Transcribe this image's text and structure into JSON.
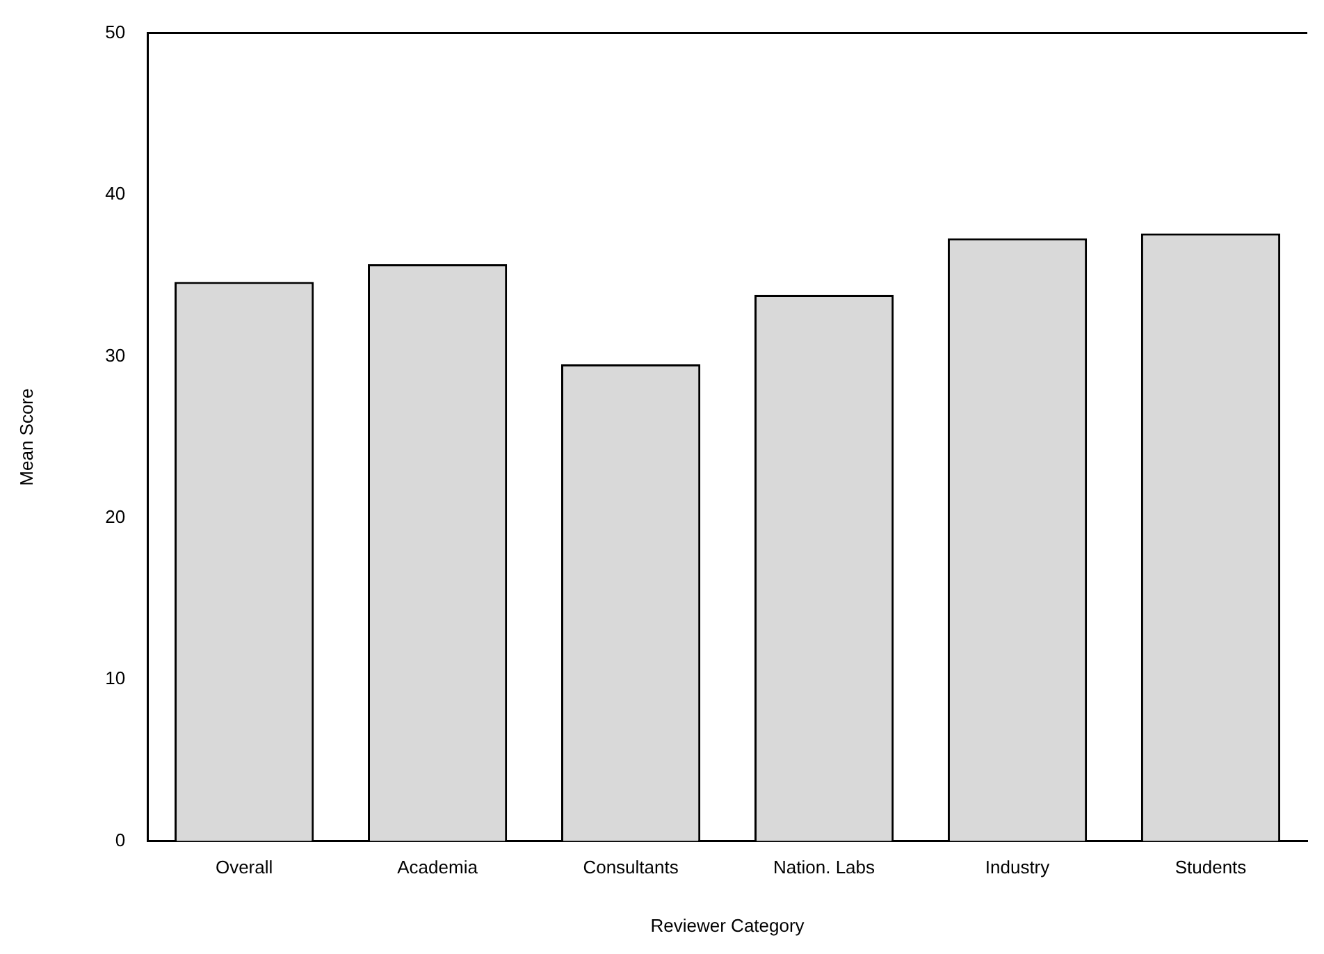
{
  "chart_data": {
    "type": "bar",
    "xlabel": "Reviewer Category",
    "ylabel": "Mean Score",
    "categories": [
      "Overall",
      "Academia",
      "Consultants",
      "Nation. Labs",
      "Industry",
      "Students"
    ],
    "values": [
      34.6,
      35.7,
      29.5,
      33.8,
      37.3,
      37.6
    ],
    "color": "#d9d9d9",
    "ylim": [
      0,
      50
    ],
    "yticks": [
      0,
      10,
      20,
      30,
      40,
      50
    ],
    "grid": false,
    "legend": false
  }
}
